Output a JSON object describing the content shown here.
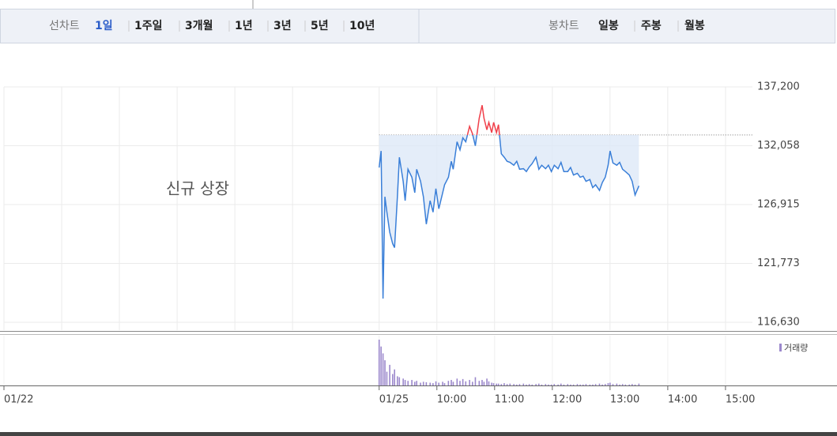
{
  "line_chart_tabs": {
    "label": "선차트",
    "items": [
      "1일",
      "1주일",
      "3개월",
      "1년",
      "3년",
      "5년",
      "10년"
    ],
    "selected": 0
  },
  "candle_tabs": {
    "label": "봉차트",
    "items": [
      "일봉",
      "주봉",
      "월봉"
    ]
  },
  "chart_data": {
    "type": "line",
    "annotation": "신규 상장",
    "x": [
      0,
      2,
      4,
      6,
      8,
      11,
      14,
      16,
      19,
      21,
      25,
      27,
      30,
      34,
      37,
      39,
      43,
      46,
      49,
      53,
      56,
      59,
      62,
      66,
      68,
      72,
      75,
      77,
      81,
      84,
      87,
      90,
      94,
      97,
      100,
      104,
      107,
      109,
      112,
      114,
      117,
      119,
      122,
      124,
      127,
      130,
      133,
      136,
      140,
      143,
      146,
      150,
      153,
      156,
      159,
      163,
      166,
      169,
      173,
      176,
      179,
      182,
      186,
      189,
      192,
      196,
      199,
      202,
      206,
      209,
      212,
      215,
      219,
      222,
      225,
      229,
      232,
      235,
      238,
      240,
      243,
      247,
      250,
      253,
      256,
      260,
      263,
      266,
      270
    ],
    "series": [
      {
        "name": "거래량",
        "color": "#9b88cc",
        "values": [
          100,
          85,
          70,
          55,
          30,
          45,
          25,
          35,
          20,
          18,
          15,
          12,
          10,
          12,
          8,
          10,
          6,
          8,
          7,
          6,
          5,
          9,
          6,
          8,
          5,
          10,
          12,
          8,
          15,
          10,
          14,
          9,
          12,
          8,
          18,
          10,
          12,
          8,
          15,
          9,
          6,
          5,
          4,
          4,
          3,
          5,
          3,
          4,
          3,
          2,
          3,
          4,
          2,
          3,
          2,
          3,
          4,
          2,
          3,
          2,
          2,
          3,
          2,
          4,
          2,
          3,
          2,
          2,
          3,
          2,
          2,
          3,
          2,
          2,
          3,
          4,
          2,
          3,
          5,
          6,
          3,
          4,
          2,
          3,
          2,
          2,
          3,
          2,
          4
        ]
      }
    ],
    "price": {
      "color_up": "#f0404a",
      "color_down": "#3a7fd8",
      "fill": "#dde8f7",
      "values": [
        130150,
        131600,
        118700,
        127600,
        126250,
        124500,
        123500,
        123150,
        127600,
        131050,
        128950,
        127250,
        130000,
        129300,
        127950,
        130000,
        128950,
        127600,
        125200,
        127250,
        126250,
        128300,
        126550,
        127950,
        128650,
        129300,
        130700,
        130000,
        132400,
        131700,
        132750,
        132400,
        133750,
        133100,
        132050,
        134450,
        135600,
        134450,
        133450,
        134100,
        133200,
        134100,
        133200,
        133900,
        131350,
        131050,
        130700,
        130600,
        130350,
        130700,
        130000,
        130050,
        129800,
        130200,
        130500,
        131050,
        130000,
        130350,
        130050,
        130350,
        129800,
        130350,
        130050,
        130600,
        129800,
        129800,
        130150,
        129500,
        129650,
        129300,
        129400,
        128950,
        129100,
        128400,
        128650,
        128150,
        128850,
        129300,
        130350,
        131600,
        130550,
        130350,
        130600,
        130000,
        129800,
        129500,
        128950,
        127750,
        128550
      ]
    },
    "base_price": 133000,
    "xlim": [
      -390,
      388
    ],
    "xticks": [
      {
        "value": -390,
        "label": "01/22"
      },
      {
        "value": 0,
        "label": "01/25"
      },
      {
        "value": 60,
        "label": "10:00"
      },
      {
        "value": 120,
        "label": "11:00"
      },
      {
        "value": 180,
        "label": "12:00"
      },
      {
        "value": 240,
        "label": "13:00"
      },
      {
        "value": 300,
        "label": "14:00"
      },
      {
        "value": 360,
        "label": "15:00"
      }
    ],
    "xgrid": [
      -330,
      -270,
      -210,
      -150,
      -90
    ],
    "ylim": [
      116630,
      137200
    ],
    "yticks": [
      {
        "value": 116630,
        "label": "116,630"
      },
      {
        "value": 121773,
        "label": "121,773"
      },
      {
        "value": 126915,
        "label": "126,915"
      },
      {
        "value": 132058,
        "label": "132,058"
      },
      {
        "value": 137200,
        "label": "137,200"
      }
    ],
    "vlim": [
      0,
      100
    ],
    "grid": true
  }
}
